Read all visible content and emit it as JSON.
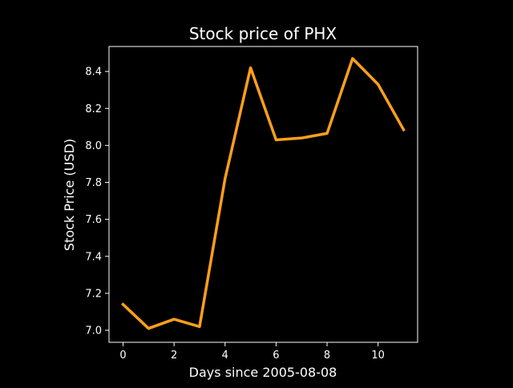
{
  "colors": {
    "background": "#000000",
    "axes": "#ffffff",
    "text": "#ffffff",
    "line": "#ff9f1c"
  },
  "chart_data": {
    "type": "line",
    "title": "Stock price of PHX",
    "xlabel": "Days since 2005-08-08",
    "ylabel": "Stock Price (USD)",
    "xlim": [
      -0.55,
      11.55
    ],
    "ylim": [
      6.935,
      8.535
    ],
    "xticks": [
      0,
      2,
      4,
      6,
      8,
      10
    ],
    "xtick_labels": [
      "0",
      "2",
      "4",
      "6",
      "8",
      "10"
    ],
    "yticks": [
      7.0,
      7.2,
      7.4,
      7.6,
      7.8,
      8.0,
      8.2,
      8.4
    ],
    "ytick_labels": [
      "7.0",
      "7.2",
      "7.4",
      "7.6",
      "7.8",
      "8.0",
      "8.2",
      "8.4"
    ],
    "grid": false,
    "series": [
      {
        "x": [
          0,
          1,
          2,
          3,
          4,
          5,
          6,
          7,
          8,
          9,
          10,
          11
        ],
        "values": [
          7.14,
          7.01,
          7.06,
          7.02,
          7.82,
          8.42,
          8.03,
          8.04,
          8.065,
          8.47,
          8.33,
          8.085
        ],
        "color": "#ff9f1c"
      }
    ]
  }
}
